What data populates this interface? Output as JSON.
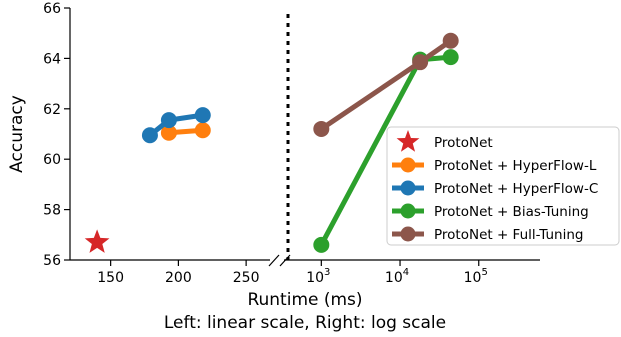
{
  "chart_data": {
    "type": "line",
    "xlabel": "Runtime (ms)",
    "ylabel": "Accuracy",
    "subtitle": "Left: linear scale, Right: log scale",
    "ylim": [
      56,
      66
    ],
    "yticks": [
      "56",
      "58",
      "60",
      "62",
      "64",
      "66"
    ],
    "left_panel": {
      "scale": "linear",
      "xlim": [
        120,
        275
      ],
      "xticks": [
        "150",
        "200",
        "250"
      ]
    },
    "right_panel": {
      "scale": "log",
      "xlim": [
        400,
        600000
      ],
      "xticks": [
        {
          "base": "10",
          "exp": "3"
        },
        {
          "base": "10",
          "exp": "4"
        },
        {
          "base": "10",
          "exp": "5"
        }
      ]
    },
    "legend_position": "right",
    "series": [
      {
        "name": "ProtoNet",
        "color": "#d62728",
        "marker": "star",
        "panel": "left",
        "points": [
          [
            140,
            56.7
          ]
        ]
      },
      {
        "name": "ProtoNet + HyperFlow-L",
        "color": "#ff7f0e",
        "marker": "circle",
        "panel": "left",
        "points": [
          [
            193,
            61.05
          ],
          [
            218,
            61.15
          ]
        ]
      },
      {
        "name": "ProtoNet + HyperFlow-C",
        "color": "#1f77b4",
        "marker": "circle",
        "panel": "left",
        "points": [
          [
            179,
            60.95
          ],
          [
            193,
            61.55
          ],
          [
            218,
            61.75
          ]
        ]
      },
      {
        "name": "ProtoNet + Bias-Tuning",
        "color": "#2ca02c",
        "marker": "circle",
        "panel": "right",
        "points": [
          [
            1000,
            56.6
          ],
          [
            18000,
            63.95
          ],
          [
            44000,
            64.05
          ]
        ]
      },
      {
        "name": "ProtoNet + Full-Tuning",
        "color": "#8c564b",
        "marker": "circle",
        "panel": "right",
        "points": [
          [
            1000,
            61.2
          ],
          [
            18000,
            63.85
          ],
          [
            44000,
            64.7
          ]
        ]
      }
    ]
  }
}
